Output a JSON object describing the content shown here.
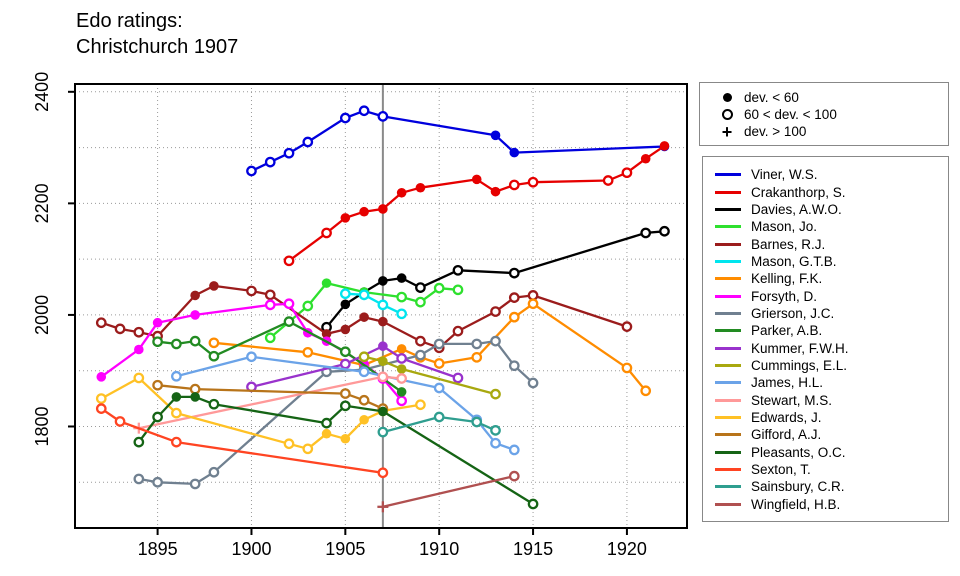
{
  "title": {
    "line1": "Edo ratings:",
    "line2": "Christchurch 1907"
  },
  "marker_legend": {
    "items": [
      {
        "marker": "filled-circle",
        "label": "dev. < 60"
      },
      {
        "marker": "open-circle",
        "label": "60 < dev. < 100"
      },
      {
        "marker": "plus",
        "label": "dev. > 100"
      }
    ]
  },
  "chart_data": {
    "type": "line",
    "title": "Edo ratings: Christchurch 1907",
    "xlabel": "",
    "ylabel": "",
    "x_ticks": [
      1895,
      1900,
      1905,
      1910,
      1915,
      1920
    ],
    "y_ticks": [
      1800,
      2000,
      2200,
      2400
    ],
    "y_gridlines": [
      1700,
      1800,
      1900,
      2000,
      2100,
      2200,
      2300,
      2400
    ],
    "xlim": [
      1890.6,
      1923.2
    ],
    "ylim": [
      1618,
      2414
    ],
    "grid": "dotted",
    "event_line_x": 1907,
    "event_line_color": "#8a8a8a",
    "marker_meaning": {
      "f": "dev. < 60",
      "o": "60 < dev. < 100",
      "p": "dev. > 100"
    },
    "series": [
      {
        "name": "Viner, W.S.",
        "color": "#0000dd",
        "points": [
          [
            1900,
            2258,
            "o"
          ],
          [
            1901,
            2274,
            "o"
          ],
          [
            1902,
            2290,
            "o"
          ],
          [
            1903,
            2310,
            "o"
          ],
          [
            1905,
            2353,
            "o"
          ],
          [
            1906,
            2366,
            "o"
          ],
          [
            1907,
            2356,
            "o"
          ],
          [
            1913,
            2322,
            "f"
          ],
          [
            1914,
            2291,
            "f"
          ],
          [
            1922,
            2302,
            "f"
          ]
        ]
      },
      {
        "name": "Crakanthorp, S.",
        "color": "#e60000",
        "points": [
          [
            1902,
            2097,
            "o"
          ],
          [
            1904,
            2147,
            "o"
          ],
          [
            1905,
            2174,
            "f"
          ],
          [
            1906,
            2185,
            "f"
          ],
          [
            1907,
            2190,
            "f"
          ],
          [
            1908,
            2219,
            "f"
          ],
          [
            1909,
            2228,
            "f"
          ],
          [
            1912,
            2243,
            "f"
          ],
          [
            1913,
            2221,
            "f"
          ],
          [
            1914,
            2233,
            "o"
          ],
          [
            1915,
            2238,
            "o"
          ],
          [
            1919,
            2241,
            "o"
          ],
          [
            1920,
            2255,
            "o"
          ],
          [
            1921,
            2280,
            "f"
          ],
          [
            1922,
            2303,
            "f"
          ]
        ]
      },
      {
        "name": "Davies, A.W.O.",
        "color": "#000000",
        "points": [
          [
            1904,
            1978,
            "o"
          ],
          [
            1905,
            2019,
            "f"
          ],
          [
            1906,
            2041,
            "f"
          ],
          [
            1907,
            2061,
            "f"
          ],
          [
            1908,
            2066,
            "f"
          ],
          [
            1909,
            2049,
            "o"
          ],
          [
            1911,
            2080,
            "o"
          ],
          [
            1914,
            2075,
            "o"
          ],
          [
            1921,
            2147,
            "o"
          ],
          [
            1922,
            2150,
            "o"
          ]
        ]
      },
      {
        "name": "Mason, Jo.",
        "color": "#2ee02e",
        "points": [
          [
            1901,
            1959,
            "o"
          ],
          [
            1903,
            2016,
            "o"
          ],
          [
            1904,
            2057,
            "f"
          ],
          [
            1906,
            2041,
            "f"
          ],
          [
            1908,
            2032,
            "o"
          ],
          [
            1909,
            2023,
            "o"
          ],
          [
            1910,
            2048,
            "o"
          ],
          [
            1911,
            2045,
            "o"
          ]
        ]
      },
      {
        "name": "Barnes, R.J.",
        "color": "#9b1c1c",
        "points": [
          [
            1892,
            1986,
            "o"
          ],
          [
            1893,
            1975,
            "o"
          ],
          [
            1894,
            1969,
            "o"
          ],
          [
            1895,
            1962,
            "o"
          ],
          [
            1897,
            2035,
            "f"
          ],
          [
            1898,
            2052,
            "f"
          ],
          [
            1900,
            2043,
            "o"
          ],
          [
            1901,
            2036,
            "o"
          ],
          [
            1904,
            1966,
            "f"
          ],
          [
            1905,
            1974,
            "f"
          ],
          [
            1906,
            1996,
            "f"
          ],
          [
            1907,
            1988,
            "f"
          ],
          [
            1909,
            1953,
            "o"
          ],
          [
            1910,
            1941,
            "o"
          ],
          [
            1911,
            1971,
            "o"
          ],
          [
            1913,
            2006,
            "o"
          ],
          [
            1914,
            2031,
            "o"
          ],
          [
            1915,
            2035,
            "o"
          ],
          [
            1920,
            1979,
            "o"
          ]
        ]
      },
      {
        "name": "Mason, G.T.B.",
        "color": "#00e5ee",
        "points": [
          [
            1905,
            2038,
            "o"
          ],
          [
            1906,
            2036,
            "o"
          ],
          [
            1907,
            2018,
            "o"
          ],
          [
            1908,
            2002,
            "o"
          ]
        ]
      },
      {
        "name": "Kelling, F.K.",
        "color": "#ff8c00",
        "points": [
          [
            1898,
            1950,
            "o"
          ],
          [
            1903,
            1933,
            "o"
          ],
          [
            1906,
            1910,
            "o"
          ],
          [
            1908,
            1939,
            "f"
          ],
          [
            1909,
            1924,
            "o"
          ],
          [
            1910,
            1913,
            "o"
          ],
          [
            1912,
            1924,
            "o"
          ],
          [
            1914,
            1996,
            "o"
          ],
          [
            1915,
            2020,
            "o"
          ],
          [
            1920,
            1905,
            "o"
          ],
          [
            1921,
            1864,
            "o"
          ]
        ]
      },
      {
        "name": "Forsyth, D.",
        "color": "#ff00ff",
        "points": [
          [
            1892,
            1889,
            "f"
          ],
          [
            1894,
            1938,
            "f"
          ],
          [
            1895,
            1986,
            "f"
          ],
          [
            1897,
            2000,
            "f"
          ],
          [
            1901,
            2018,
            "o"
          ],
          [
            1902,
            2020,
            "o"
          ],
          [
            1903,
            1968,
            "f"
          ],
          [
            1904,
            1953,
            "f"
          ],
          [
            1906,
            1912,
            "f"
          ],
          [
            1907,
            1886,
            "o"
          ],
          [
            1908,
            1846,
            "o"
          ]
        ]
      },
      {
        "name": "Grierson, J.C.",
        "color": "#708090",
        "points": [
          [
            1894,
            1706,
            "o"
          ],
          [
            1895,
            1700,
            "o"
          ],
          [
            1897,
            1697,
            "o"
          ],
          [
            1898,
            1718,
            "o"
          ],
          [
            1904,
            1898,
            "o"
          ],
          [
            1906,
            1902,
            "o"
          ],
          [
            1909,
            1928,
            "o"
          ],
          [
            1910,
            1948,
            "o"
          ],
          [
            1912,
            1948,
            "o"
          ],
          [
            1913,
            1953,
            "o"
          ],
          [
            1914,
            1909,
            "o"
          ],
          [
            1915,
            1878,
            "o"
          ]
        ]
      },
      {
        "name": "Parker, A.B.",
        "color": "#228b22",
        "points": [
          [
            1895,
            1952,
            "o"
          ],
          [
            1896,
            1948,
            "o"
          ],
          [
            1897,
            1953,
            "o"
          ],
          [
            1898,
            1926,
            "o"
          ],
          [
            1902,
            1988,
            "o"
          ],
          [
            1905,
            1934,
            "o"
          ],
          [
            1908,
            1862,
            "f"
          ]
        ]
      },
      {
        "name": "Kummer, F.W.H.",
        "color": "#9932cc",
        "points": [
          [
            1900,
            1871,
            "o"
          ],
          [
            1905,
            1912,
            "o"
          ],
          [
            1907,
            1944,
            "f"
          ],
          [
            1908,
            1922,
            "o"
          ],
          [
            1911,
            1887,
            "o"
          ]
        ]
      },
      {
        "name": "Cummings, E.L.",
        "color": "#a8a80f",
        "points": [
          [
            1906,
            1925,
            "o"
          ],
          [
            1907,
            1917,
            "f"
          ],
          [
            1908,
            1903,
            "f"
          ],
          [
            1913,
            1858,
            "o"
          ]
        ]
      },
      {
        "name": "James, H.L.",
        "color": "#6ba3e8",
        "points": [
          [
            1896,
            1890,
            "o"
          ],
          [
            1900,
            1925,
            "o"
          ],
          [
            1906,
            1898,
            "o"
          ],
          [
            1910,
            1869,
            "o"
          ],
          [
            1912,
            1812,
            "o"
          ],
          [
            1913,
            1770,
            "o"
          ],
          [
            1914,
            1758,
            "o"
          ]
        ]
      },
      {
        "name": "Stewart, M.S.",
        "color": "#ff9999",
        "points": [
          [
            1894,
            1797,
            "p"
          ],
          [
            1907,
            1889,
            "o"
          ],
          [
            1908,
            1886,
            "o"
          ]
        ]
      },
      {
        "name": "Edwards, J.",
        "color": "#ffc125",
        "points": [
          [
            1892,
            1850,
            "o"
          ],
          [
            1894,
            1887,
            "o"
          ],
          [
            1896,
            1824,
            "o"
          ],
          [
            1902,
            1769,
            "o"
          ],
          [
            1903,
            1760,
            "o"
          ],
          [
            1904,
            1787,
            "f"
          ],
          [
            1905,
            1778,
            "f"
          ],
          [
            1906,
            1812,
            "f"
          ],
          [
            1907,
            1828,
            "o"
          ],
          [
            1909,
            1839,
            "o"
          ]
        ]
      },
      {
        "name": "Gifford, A.J.",
        "color": "#b8741a",
        "points": [
          [
            1895,
            1874,
            "o"
          ],
          [
            1897,
            1867,
            "o"
          ],
          [
            1905,
            1859,
            "o"
          ],
          [
            1906,
            1847,
            "o"
          ],
          [
            1907,
            1832,
            "o"
          ]
        ]
      },
      {
        "name": "Pleasants, O.C.",
        "color": "#156415",
        "points": [
          [
            1894,
            1772,
            "o"
          ],
          [
            1895,
            1817,
            "o"
          ],
          [
            1896,
            1853,
            "f"
          ],
          [
            1897,
            1853,
            "f"
          ],
          [
            1898,
            1840,
            "o"
          ],
          [
            1904,
            1806,
            "o"
          ],
          [
            1905,
            1837,
            "o"
          ],
          [
            1907,
            1827,
            "f"
          ],
          [
            1915,
            1661,
            "o"
          ]
        ]
      },
      {
        "name": "Sexton, T.",
        "color": "#ff4422",
        "points": [
          [
            1892,
            1832,
            "o"
          ],
          [
            1893,
            1809,
            "o"
          ],
          [
            1896,
            1772,
            "o"
          ],
          [
            1907,
            1717,
            "o"
          ]
        ]
      },
      {
        "name": "Sainsbury, C.R.",
        "color": "#2f9e8f",
        "points": [
          [
            1907,
            1790,
            "o"
          ],
          [
            1910,
            1817,
            "o"
          ],
          [
            1912,
            1808,
            "o"
          ],
          [
            1913,
            1793,
            "o"
          ]
        ]
      },
      {
        "name": "Wingfield, H.B.",
        "color": "#b05050",
        "points": [
          [
            1907,
            1656,
            "p"
          ],
          [
            1914,
            1711,
            "o"
          ]
        ]
      }
    ]
  }
}
